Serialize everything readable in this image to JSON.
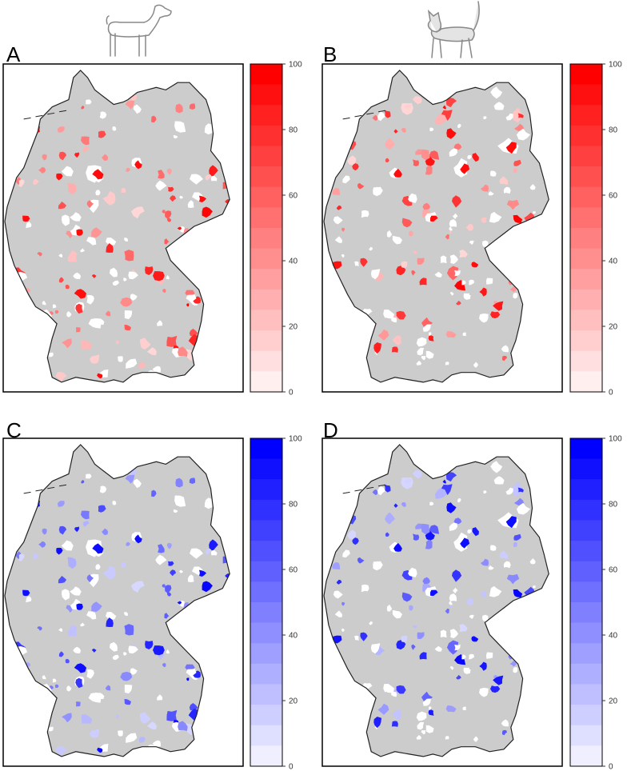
{
  "figure": {
    "panels": [
      {
        "letter": "A",
        "animal_icon": "dog-icon",
        "color_scale": "red",
        "scale_ticks": [
          "100",
          "80",
          "60",
          "40",
          "20",
          "0"
        ]
      },
      {
        "letter": "B",
        "animal_icon": "cat-icon",
        "color_scale": "red",
        "scale_ticks": [
          "100",
          "80",
          "60",
          "40",
          "20",
          "0"
        ]
      },
      {
        "letter": "C",
        "animal_icon": "",
        "color_scale": "blue",
        "scale_ticks": [
          "100",
          "80",
          "60",
          "40",
          "20",
          "0"
        ]
      },
      {
        "letter": "D",
        "animal_icon": "",
        "color_scale": "blue",
        "scale_ticks": [
          "100",
          "80",
          "60",
          "40",
          "20",
          "0"
        ]
      }
    ],
    "colors": {
      "red_max": "#ff0000",
      "blue_max": "#0000ff",
      "land": "#cccccc",
      "no_data": "#ffffff",
      "outline": "#222222"
    },
    "scale_range": [
      0,
      100
    ],
    "scale_steps": 16
  }
}
